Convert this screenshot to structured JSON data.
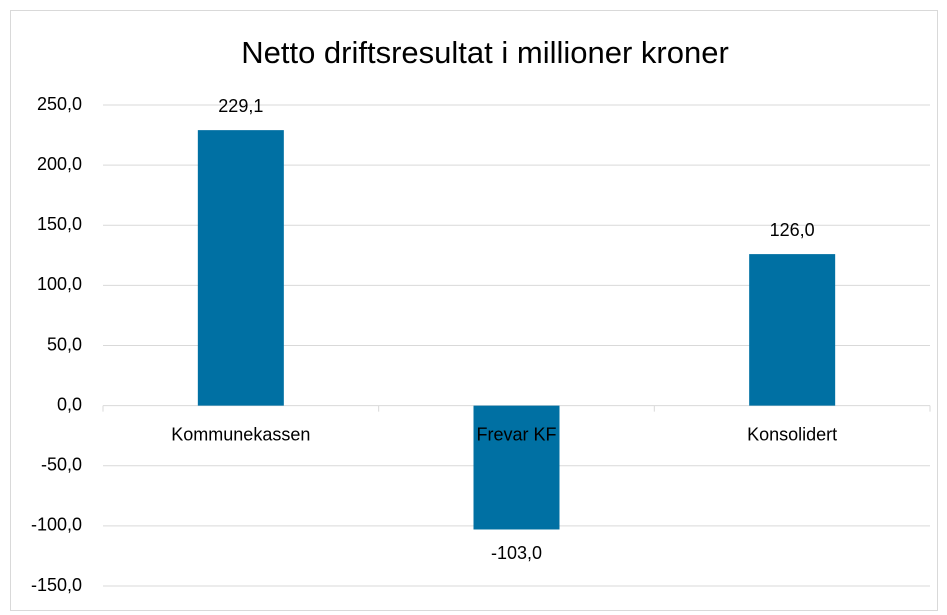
{
  "chart_data": {
    "type": "bar",
    "title": "Netto driftsresultat i millioner kroner",
    "categories": [
      "Kommunekassen",
      "Frevar KF",
      "Konsolidert"
    ],
    "values": [
      229.1,
      -103.0,
      126.0
    ],
    "value_labels": [
      "229,1",
      "-103,0",
      "126,0"
    ],
    "color": "#0070a3",
    "ylim": [
      -150,
      250
    ],
    "yticks": [
      {
        "value": -150,
        "label": "-150,0"
      },
      {
        "value": -100,
        "label": "-100,0"
      },
      {
        "value": -50,
        "label": "-50,0"
      },
      {
        "value": 0,
        "label": "0,0"
      },
      {
        "value": 50,
        "label": "50,0"
      },
      {
        "value": 100,
        "label": "100,0"
      },
      {
        "value": 150,
        "label": "150,0"
      },
      {
        "value": 200,
        "label": "200,0"
      },
      {
        "value": 250,
        "label": "250,0"
      }
    ],
    "grid": true
  }
}
